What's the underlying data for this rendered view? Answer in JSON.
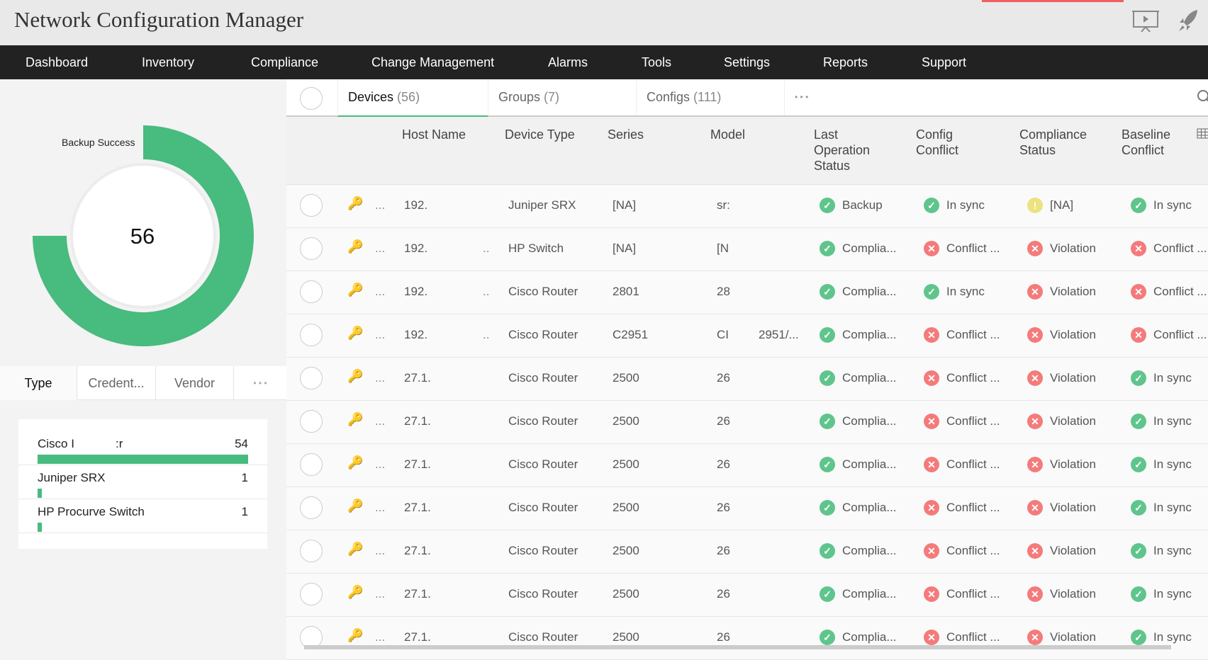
{
  "app": {
    "title": "Network Configuration Manager",
    "icons": [
      "presentation-icon",
      "rocket-icon"
    ]
  },
  "nav": [
    "Dashboard",
    "Inventory",
    "Compliance",
    "Change Management",
    "Alarms",
    "Tools",
    "Settings",
    "Reports",
    "Support"
  ],
  "donut": {
    "label": "Backup Success",
    "total": "56",
    "fraction": 0.75,
    "color": "#48bb7f"
  },
  "left_tabs": [
    "Type",
    "Credent...",
    "Vendor",
    "• • •"
  ],
  "type_list": [
    {
      "label_start": "Cisco I",
      "label_end": ":r",
      "count": "54",
      "value": 54
    },
    {
      "label_start": "Juniper SRX",
      "label_end": "",
      "count": "1",
      "value": 1
    },
    {
      "label_start": "HP Procurve Switch",
      "label_end": "",
      "count": "1",
      "value": 1
    }
  ],
  "tabs": [
    {
      "label": "Devices",
      "count": "(56)"
    },
    {
      "label": "Groups",
      "count": "(7)"
    },
    {
      "label": "Configs",
      "count": "(111)"
    },
    {
      "label": "• • •",
      "count": ""
    }
  ],
  "columns": [
    "Host Name",
    "Device Type",
    "Series",
    "Model",
    "Last Operation Status",
    "Config Conflict",
    "Compliance Status",
    "Baseline Conflict"
  ],
  "colors": {
    "ok": "#5fc58c",
    "error": "#f47b7b",
    "warning": "#ece27e",
    "accent": "#48bb7f"
  },
  "rows": [
    {
      "dots": "...",
      "host": "192.",
      "host2": "",
      "type": "Juniper SRX",
      "series": "[NA]",
      "model": "sr:",
      "extra": "",
      "last": [
        "ok",
        "Backup"
      ],
      "config": [
        "ok",
        "In sync"
      ],
      "compliance": [
        "warn",
        "[NA]"
      ],
      "baseline": [
        "ok",
        "In sync"
      ]
    },
    {
      "dots": "...",
      "host": "192.",
      "host2": "..",
      "type": "HP Switch",
      "series": "[NA]",
      "model": "[N",
      "extra": "",
      "last": [
        "ok",
        "Complia..."
      ],
      "config": [
        "err",
        "Conflict ..."
      ],
      "compliance": [
        "err",
        "Violation"
      ],
      "baseline": [
        "err",
        "Conflict ..."
      ]
    },
    {
      "dots": "...",
      "host": "192.",
      "host2": "..",
      "type": "Cisco Router",
      "series": "2801",
      "model": "28",
      "extra": "",
      "last": [
        "ok",
        "Complia..."
      ],
      "config": [
        "ok",
        "In sync"
      ],
      "compliance": [
        "err",
        "Violation"
      ],
      "baseline": [
        "err",
        "Conflict ..."
      ]
    },
    {
      "dots": "...",
      "host": "192.",
      "host2": "..",
      "type": "Cisco Router",
      "series": "C2951",
      "model": "CI",
      "extra": "2951/...",
      "last": [
        "ok",
        "Complia..."
      ],
      "config": [
        "err",
        "Conflict ..."
      ],
      "compliance": [
        "err",
        "Violation"
      ],
      "baseline": [
        "err",
        "Conflict ..."
      ]
    },
    {
      "dots": "...",
      "host": "27.1.",
      "host2": "",
      "type": "Cisco Router",
      "series": "2500",
      "model": "26",
      "extra": "",
      "last": [
        "ok",
        "Complia..."
      ],
      "config": [
        "err",
        "Conflict ..."
      ],
      "compliance": [
        "err",
        "Violation"
      ],
      "baseline": [
        "ok",
        "In sync"
      ]
    },
    {
      "dots": "...",
      "host": "27.1.",
      "host2": "",
      "type": "Cisco Router",
      "series": "2500",
      "model": "26",
      "extra": "",
      "last": [
        "ok",
        "Complia..."
      ],
      "config": [
        "err",
        "Conflict ..."
      ],
      "compliance": [
        "err",
        "Violation"
      ],
      "baseline": [
        "ok",
        "In sync"
      ]
    },
    {
      "dots": "...",
      "host": "27.1.",
      "host2": "",
      "type": "Cisco Router",
      "series": "2500",
      "model": "26",
      "extra": "",
      "last": [
        "ok",
        "Complia..."
      ],
      "config": [
        "err",
        "Conflict ..."
      ],
      "compliance": [
        "err",
        "Violation"
      ],
      "baseline": [
        "ok",
        "In sync"
      ]
    },
    {
      "dots": "...",
      "host": "27.1.",
      "host2": "",
      "type": "Cisco Router",
      "series": "2500",
      "model": "26",
      "extra": "",
      "last": [
        "ok",
        "Complia..."
      ],
      "config": [
        "err",
        "Conflict ..."
      ],
      "compliance": [
        "err",
        "Violation"
      ],
      "baseline": [
        "ok",
        "In sync"
      ]
    },
    {
      "dots": "...",
      "host": "27.1.",
      "host2": "",
      "type": "Cisco Router",
      "series": "2500",
      "model": "26",
      "extra": "",
      "last": [
        "ok",
        "Complia..."
      ],
      "config": [
        "err",
        "Conflict ..."
      ],
      "compliance": [
        "err",
        "Violation"
      ],
      "baseline": [
        "ok",
        "In sync"
      ]
    },
    {
      "dots": "...",
      "host": "27.1.",
      "host2": "",
      "type": "Cisco Router",
      "series": "2500",
      "model": "26",
      "extra": "",
      "last": [
        "ok",
        "Complia..."
      ],
      "config": [
        "err",
        "Conflict ..."
      ],
      "compliance": [
        "err",
        "Violation"
      ],
      "baseline": [
        "ok",
        "In sync"
      ]
    },
    {
      "dots": "...",
      "host": "27.1.",
      "host2": "",
      "type": "Cisco Router",
      "series": "2500",
      "model": "26",
      "extra": "",
      "last": [
        "ok",
        "Complia..."
      ],
      "config": [
        "err",
        "Conflict ..."
      ],
      "compliance": [
        "err",
        "Violation"
      ],
      "baseline": [
        "ok",
        "In sync"
      ]
    }
  ]
}
